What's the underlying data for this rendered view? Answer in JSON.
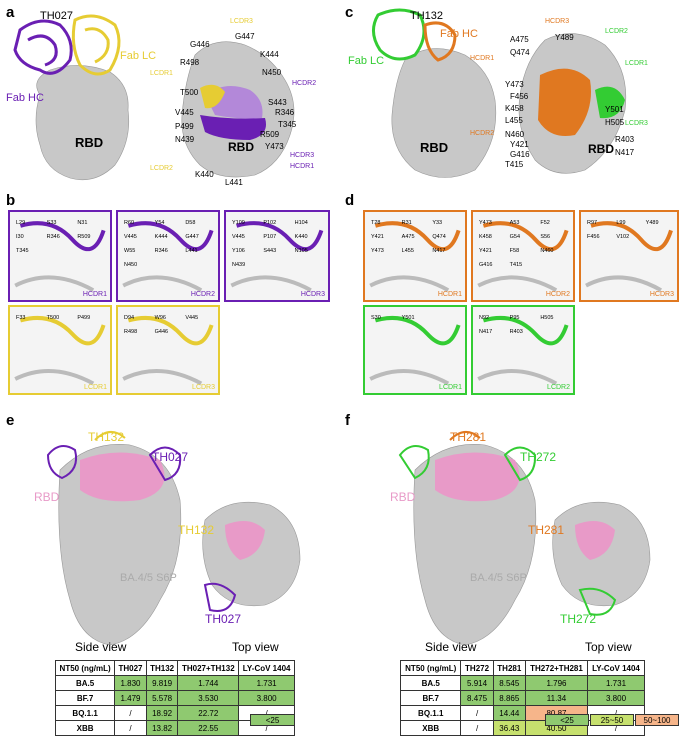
{
  "panels": {
    "a": "a",
    "b": "b",
    "c": "c",
    "d": "d",
    "e": "e",
    "f": "f"
  },
  "colors": {
    "purple": "#6a1fb3",
    "yellow": "#e6cc33",
    "orange": "#e07820",
    "green": "#33cc33",
    "pink": "#e89ac8",
    "grey": "#bfbfbf",
    "table_green": "#8fc970",
    "table_yellow": "#c6e06e",
    "table_orange": "#f6b58a"
  },
  "a": {
    "antibody": "TH027",
    "fab_lc": "Fab LC",
    "fab_hc": "Fab HC",
    "rbd": "RBD",
    "rbd2": "RBD",
    "residues": [
      "G446",
      "G447",
      "K444",
      "R498",
      "N450",
      "T500",
      "S443",
      "V445",
      "R346",
      "P499",
      "T345",
      "R509",
      "N439",
      "Y473",
      "K440",
      "L441"
    ],
    "cdrs": [
      "LCDR3",
      "LCDR1",
      "LCDR2",
      "HCDR2",
      "HCDR3",
      "HCDR1"
    ]
  },
  "b": {
    "boxes": [
      "HCDR1",
      "HCDR2",
      "HCDR3",
      "LCDR1",
      "LCDR3"
    ],
    "hcdr1_res": [
      "L29",
      "S33",
      "N31",
      "I30",
      "R346",
      "R509",
      "T345"
    ],
    "hcdr2_res": [
      "R60",
      "Y54",
      "D58",
      "V445",
      "K444",
      "G447",
      "W55",
      "R346",
      "L441",
      "N450"
    ],
    "hcdr3_res": [
      "Y109",
      "P102",
      "H104",
      "V445",
      "P107",
      "K440",
      "Y106",
      "S443",
      "N105",
      "N439"
    ],
    "lcdr1_res": [
      "F33",
      "T500",
      "P499"
    ],
    "lcdr3_res": [
      "D94",
      "W96",
      "V445",
      "R498",
      "G446"
    ]
  },
  "c": {
    "antibody": "TH132",
    "fab_hc": "Fab HC",
    "fab_lc": "Fab LC",
    "rbd": "RBD",
    "rbd2": "RBD",
    "residues": [
      "A475",
      "Y489",
      "Q474",
      "Y501",
      "Y473",
      "F456",
      "K458",
      "L455",
      "H505",
      "N460",
      "Y421",
      "R403",
      "G416",
      "N417",
      "T415"
    ],
    "cdrs": [
      "HCDR3",
      "HCDR1",
      "LCDR2",
      "LCDR1",
      "HCDR2",
      "LCDR3"
    ]
  },
  "d": {
    "boxes": [
      "HCDR1",
      "HCDR2",
      "HCDR3",
      "LCDR1",
      "LCDR2"
    ],
    "hcdr1_res": [
      "T28",
      "R31",
      "Y33",
      "Y421",
      "A475",
      "Q474",
      "Y473",
      "L455",
      "N417"
    ],
    "hcdr2_res": [
      "Y473",
      "A53",
      "F52",
      "K458",
      "G54",
      "S56",
      "Y421",
      "F58",
      "N460",
      "G416",
      "T415"
    ],
    "hcdr3_res": [
      "R97",
      "L99",
      "Y489",
      "F456",
      "V102"
    ],
    "lcdr1_res": [
      "S30",
      "Y501"
    ],
    "lcdr2_res": [
      "N92",
      "P95",
      "H505",
      "N417",
      "R403"
    ]
  },
  "e": {
    "ab1": "TH132",
    "ab2": "TH027",
    "rbd": "RBD",
    "spike": "BA.4/5 S6P",
    "top_ab1": "TH132",
    "top_ab2": "TH027",
    "side_view": "Side view",
    "top_view": "Top view",
    "table": {
      "header": [
        "NT50 (ng/mL)",
        "TH027",
        "TH132",
        "TH027+TH132",
        "LY-CoV 1404"
      ],
      "rows": [
        {
          "name": "BA.5",
          "cells": [
            "1.830",
            "9.819",
            "1.744",
            "1.731"
          ],
          "colors": [
            "g",
            "g",
            "g",
            "g"
          ]
        },
        {
          "name": "BF.7",
          "cells": [
            "1.479",
            "5.578",
            "3.530",
            "3.800"
          ],
          "colors": [
            "g",
            "g",
            "g",
            "g"
          ]
        },
        {
          "name": "BQ.1.1",
          "cells": [
            "/",
            "18.92",
            "22.72",
            "/"
          ],
          "colors": [
            "",
            "g",
            "g",
            ""
          ]
        },
        {
          "name": "XBB",
          "cells": [
            "/",
            "13.82",
            "22.55",
            "/"
          ],
          "colors": [
            "",
            "g",
            "g",
            ""
          ]
        }
      ],
      "legend": [
        "<25"
      ]
    }
  },
  "f": {
    "ab1": "TH281",
    "ab2": "TH272",
    "rbd": "RBD",
    "spike": "BA.4/5 S6P",
    "top_ab1": "TH281",
    "top_ab2": "TH272",
    "side_view": "Side view",
    "top_view": "Top view",
    "table": {
      "header": [
        "NT50 (ng/mL)",
        "TH272",
        "TH281",
        "TH272+TH281",
        "LY-CoV 1404"
      ],
      "rows": [
        {
          "name": "BA.5",
          "cells": [
            "5.914",
            "8.545",
            "1.796",
            "1.731"
          ],
          "colors": [
            "g",
            "g",
            "g",
            "g"
          ]
        },
        {
          "name": "BF.7",
          "cells": [
            "8.475",
            "8.865",
            "11.34",
            "3.800"
          ],
          "colors": [
            "g",
            "g",
            "g",
            "g"
          ]
        },
        {
          "name": "BQ.1.1",
          "cells": [
            "/",
            "14.44",
            "80.87",
            "/"
          ],
          "colors": [
            "",
            "g",
            "o",
            ""
          ]
        },
        {
          "name": "XBB",
          "cells": [
            "/",
            "36.43",
            "40.50",
            "/"
          ],
          "colors": [
            "",
            "y",
            "y",
            ""
          ]
        }
      ],
      "legend": [
        "<25",
        "25~50",
        "50~100"
      ]
    }
  }
}
